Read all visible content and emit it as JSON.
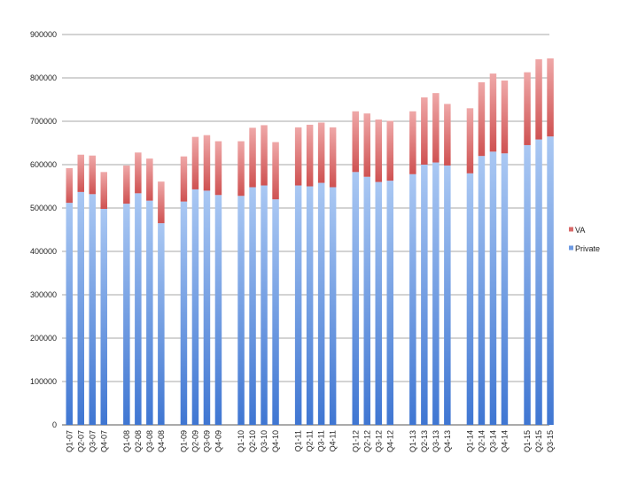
{
  "chart_data": {
    "type": "bar",
    "stacked": true,
    "title": "",
    "xlabel": "",
    "ylabel": "",
    "ylim": [
      0,
      900000
    ],
    "yticks": [
      0,
      100000,
      200000,
      300000,
      400000,
      500000,
      600000,
      700000,
      800000,
      900000
    ],
    "grid": true,
    "legend_position": "right",
    "categories": [
      "Q1-07",
      "Q2-07",
      "Q3-07",
      "Q4-07",
      "Q1-08",
      "Q2-08",
      "Q3-08",
      "Q4-08",
      "Q1-09",
      "Q2-09",
      "Q3-09",
      "Q4-09",
      "Q1-10",
      "Q2-10",
      "Q3-10",
      "Q4-10",
      "Q1-11",
      "Q2-11",
      "Q3-11",
      "Q4-11",
      "Q1-12",
      "Q2-12",
      "Q3-12",
      "Q4-12",
      "Q1-13",
      "Q2-13",
      "Q3-13",
      "Q4-13",
      "Q1-14",
      "Q2-14",
      "Q3-14",
      "Q4-14",
      "Q1-15",
      "Q2-15",
      "Q3-15"
    ],
    "series": [
      {
        "name": "Private",
        "color": "#6f9be3",
        "values": [
          512000,
          537000,
          532000,
          498000,
          510000,
          534000,
          517000,
          465000,
          515000,
          543000,
          540000,
          530000,
          528000,
          548000,
          552000,
          520000,
          552000,
          550000,
          558000,
          548000,
          583000,
          572000,
          560000,
          563000,
          578000,
          600000,
          605000,
          598000,
          580000,
          620000,
          630000,
          626000,
          645000,
          658000,
          665000
        ]
      },
      {
        "name": "VA",
        "color": "#d86a6a",
        "values": [
          80000,
          86000,
          89000,
          85000,
          88000,
          94000,
          97000,
          96000,
          104000,
          121000,
          128000,
          124000,
          126000,
          137000,
          139000,
          132000,
          134000,
          142000,
          139000,
          138000,
          140000,
          146000,
          144000,
          138000,
          145000,
          155000,
          160000,
          142000,
          150000,
          170000,
          180000,
          168000,
          168000,
          185000,
          180000
        ]
      }
    ],
    "legend_order": [
      "VA",
      "Private"
    ]
  }
}
